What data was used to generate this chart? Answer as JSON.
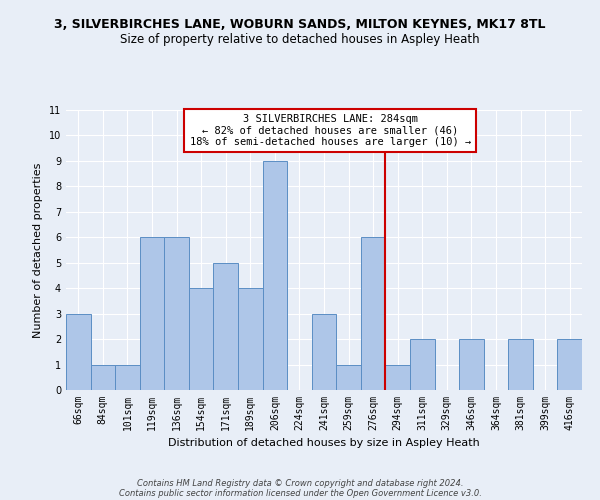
{
  "title_line1": "3, SILVERBIRCHES LANE, WOBURN SANDS, MILTON KEYNES, MK17 8TL",
  "title_line2": "Size of property relative to detached houses in Aspley Heath",
  "xlabel": "Distribution of detached houses by size in Aspley Heath",
  "ylabel": "Number of detached properties",
  "categories": [
    "66sqm",
    "84sqm",
    "101sqm",
    "119sqm",
    "136sqm",
    "154sqm",
    "171sqm",
    "189sqm",
    "206sqm",
    "224sqm",
    "241sqm",
    "259sqm",
    "276sqm",
    "294sqm",
    "311sqm",
    "329sqm",
    "346sqm",
    "364sqm",
    "381sqm",
    "399sqm",
    "416sqm"
  ],
  "values": [
    3,
    1,
    1,
    6,
    6,
    4,
    5,
    4,
    9,
    0,
    3,
    1,
    6,
    1,
    2,
    0,
    2,
    0,
    2,
    0,
    2
  ],
  "bar_color": "#aec6e8",
  "bar_edge_color": "#5b8ec4",
  "ylim": [
    0,
    11
  ],
  "yticks": [
    0,
    1,
    2,
    3,
    4,
    5,
    6,
    7,
    8,
    9,
    10,
    11
  ],
  "vline_x": 12.5,
  "vline_color": "#cc0000",
  "annotation_text": "3 SILVERBIRCHES LANE: 284sqm\n← 82% of detached houses are smaller (46)\n18% of semi-detached houses are larger (10) →",
  "annotation_box_facecolor": "#ffffff",
  "annotation_box_edgecolor": "#cc0000",
  "footnote_line1": "Contains HM Land Registry data © Crown copyright and database right 2024.",
  "footnote_line2": "Contains public sector information licensed under the Open Government Licence v3.0.",
  "bg_color": "#e8eef7",
  "grid_color": "#ffffff",
  "title1_fontsize": 9,
  "title2_fontsize": 8.5,
  "xlabel_fontsize": 8,
  "ylabel_fontsize": 8,
  "tick_fontsize": 7,
  "annot_fontsize": 7.5,
  "footnote_fontsize": 6
}
